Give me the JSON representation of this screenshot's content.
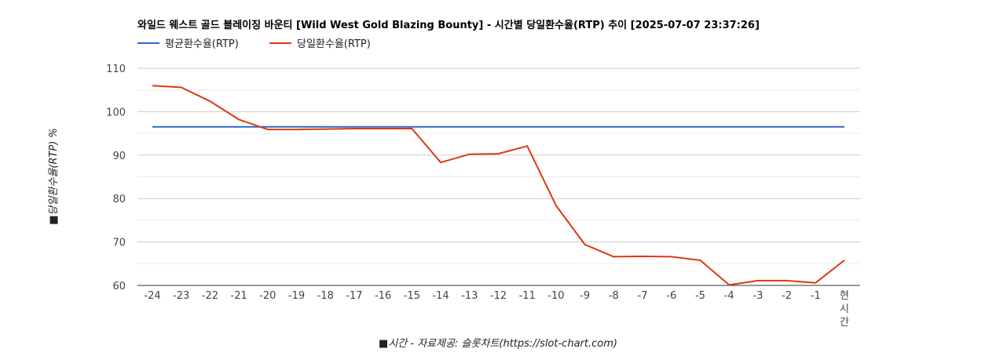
{
  "chart_data": {
    "type": "line",
    "title": "와일드 웨스트 골드 블레이징 바운티 [Wild West Gold Blazing Bounty] - 시간별 당일환수율(RTP) 추이 [2025-07-07 23:37:26]",
    "xlabel": "■시간 - 자료제공: 슬롯차트(https://slot-chart.com)",
    "ylabel": "■당일환수율(RTP) %",
    "categories": [
      "-24",
      "-23",
      "-22",
      "-21",
      "-20",
      "-19",
      "-18",
      "-17",
      "-16",
      "-15",
      "-14",
      "-13",
      "-12",
      "-11",
      "-10",
      "-9",
      "-8",
      "-7",
      "-6",
      "-5",
      "-4",
      "-3",
      "-2",
      "-1",
      "현시간"
    ],
    "ylim": [
      60,
      110
    ],
    "yticks": [
      60,
      70,
      80,
      90,
      100,
      110
    ],
    "grid": true,
    "legend_position": "top-left",
    "series": [
      {
        "name": "평균환수율(RTP)",
        "color": "#3366cc",
        "values": [
          96.5,
          96.5,
          96.5,
          96.5,
          96.5,
          96.5,
          96.5,
          96.5,
          96.5,
          96.5,
          96.5,
          96.5,
          96.5,
          96.5,
          96.5,
          96.5,
          96.5,
          96.5,
          96.5,
          96.5,
          96.5,
          96.5,
          96.5,
          96.5,
          96.5
        ]
      },
      {
        "name": "당일환수율(RTP)",
        "color": "#dc3912",
        "values": [
          106.0,
          105.6,
          102.4,
          98.2,
          95.9,
          95.9,
          96.0,
          96.1,
          96.1,
          96.1,
          88.3,
          90.2,
          90.3,
          92.1,
          78.4,
          69.4,
          66.6,
          66.7,
          66.6,
          65.8,
          60.1,
          61.1,
          61.1,
          60.6,
          65.8
        ]
      }
    ]
  }
}
